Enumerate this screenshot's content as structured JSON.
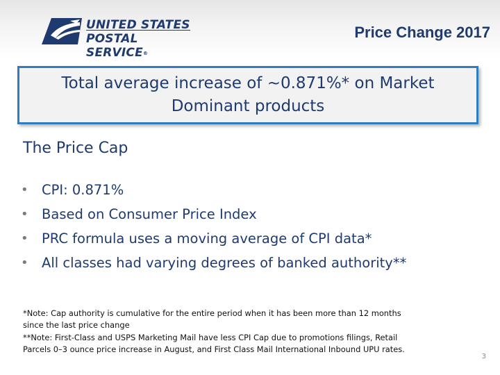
{
  "header": {
    "logo_text_line1": "UNITED STATES",
    "logo_text_line2": "POSTAL SERVICE",
    "deck_title": "Price Change 2017"
  },
  "callout": {
    "text_line1": "Total average increase of ~0.871%* on Market",
    "text_line2": "Dominant products"
  },
  "section": {
    "heading": "The Price Cap",
    "bullets": [
      "CPI:  0.871%",
      "Based on Consumer Price Index",
      "PRC formula uses a moving average of CPI data*",
      "All classes had varying degrees of banked authority**"
    ]
  },
  "notes": {
    "note1_line1": "*Note: Cap authority is cumulative for the entire period when it has been more than 12 months",
    "note1_line2": "since the last price change",
    "note2_line1": "**Note: First-Class and USPS Marketing Mail have less CPI Cap due to promotions filings, Retail",
    "note2_line2": "Parcels 0–3 ounce price increase in August, and First Class Mail International Inbound UPU rates."
  },
  "page_number": "3",
  "colors": {
    "usps_blue": "#1f3a6e",
    "callout_border": "#2f7dc0",
    "callout_fill": "#f2f2f2"
  }
}
